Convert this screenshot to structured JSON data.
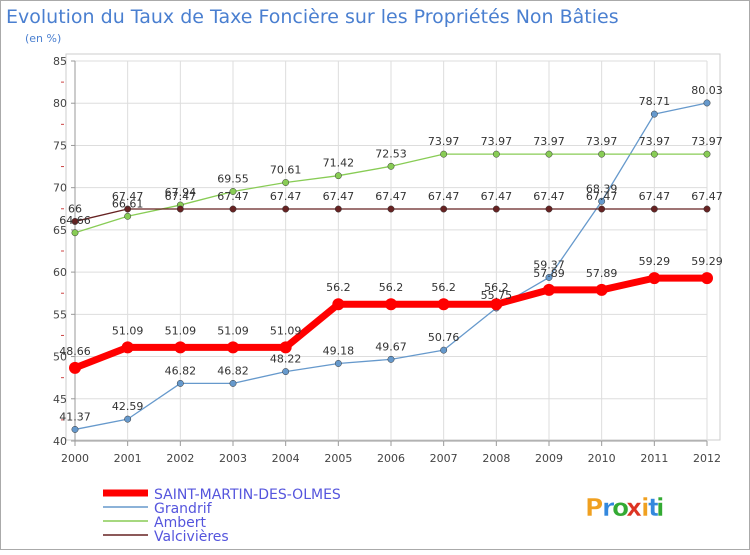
{
  "chart_data": {
    "type": "line",
    "title": "Evolution du Taux de Taxe Foncière sur les Propriétés Non Bâties",
    "subtitle": "(en %)",
    "xlabel": "",
    "ylabel": "",
    "ylim": [
      40,
      85
    ],
    "yticks": [
      40,
      45,
      50,
      55,
      60,
      65,
      70,
      75,
      80,
      85
    ],
    "grid": true,
    "legend_position": "bottom-left",
    "categories": [
      "2000",
      "2001",
      "2002",
      "2003",
      "2004",
      "2005",
      "2006",
      "2007",
      "2008",
      "2009",
      "2010",
      "2011",
      "2012"
    ],
    "series": [
      {
        "name": "SAINT-MARTIN-DES-OLMES",
        "color": "#ff0000",
        "values": [
          48.66,
          51.09,
          51.09,
          51.09,
          51.09,
          56.2,
          56.2,
          56.2,
          56.2,
          57.89,
          57.89,
          59.29,
          59.29
        ],
        "labels": [
          "48.66",
          "51.09",
          "51.09",
          "51.09",
          "51.09",
          "56.2",
          "56.2",
          "56.2",
          "56.2",
          "57.89",
          "57.89",
          "59.29",
          "59.29"
        ]
      },
      {
        "name": "Grandrif",
        "color": "#6699cc",
        "values": [
          41.37,
          42.59,
          46.82,
          46.82,
          48.22,
          49.18,
          49.67,
          50.76,
          55.75,
          59.37,
          68.39,
          78.71,
          80.03
        ],
        "labels": [
          "41.37",
          "42.59",
          "46.82",
          "46.82",
          "48.22",
          "49.18",
          "49.67",
          "50.76",
          "55.75",
          "59.37",
          "68.39",
          "78.71",
          "80.03"
        ]
      },
      {
        "name": "Ambert",
        "color": "#88cc55",
        "values": [
          64.66,
          66.61,
          67.94,
          69.55,
          70.61,
          71.42,
          72.53,
          73.97,
          73.97,
          73.97,
          73.97,
          73.97,
          73.97
        ],
        "labels": [
          "64.66",
          "66.61",
          "67.94",
          "69.55",
          "70.61",
          "71.42",
          "72.53",
          "73.97",
          "73.97",
          "73.97",
          "73.97",
          "73.97",
          "73.97"
        ]
      },
      {
        "name": "Valcivières",
        "color": "#662222",
        "values": [
          66,
          67.47,
          67.47,
          67.47,
          67.47,
          67.47,
          67.47,
          67.47,
          67.47,
          67.47,
          67.47,
          67.47,
          67.47
        ],
        "labels": [
          "66",
          "67.47",
          "67.47",
          "67.47",
          "67.47",
          "67.47",
          "67.47",
          "67.47",
          "67.47",
          "67.47",
          "67.47",
          "67.47",
          "67.47"
        ]
      }
    ]
  },
  "branding": {
    "logo_text": "Proxiti",
    "logo_letters": [
      "P",
      "r",
      "o",
      "x",
      "i",
      "t",
      "i"
    ],
    "logo_colors": [
      "#f0a020",
      "#3388dd",
      "#33aa33",
      "#dd3322",
      "#f0a020",
      "#3388dd",
      "#33aa33"
    ]
  },
  "colors": {
    "title": "#4a7fd0",
    "legend_text": "#5555dd",
    "axis": "#999999",
    "grid": "#dddddd",
    "tick_text": "#444444"
  }
}
